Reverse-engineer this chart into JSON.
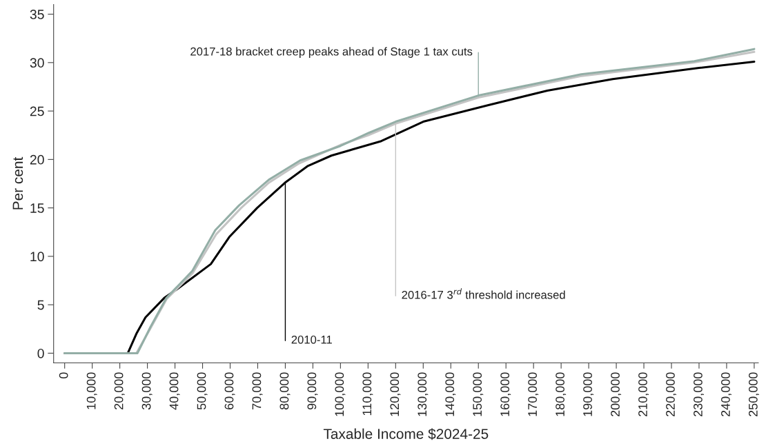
{
  "chart_data": {
    "type": "line",
    "xlabel": "Taxable Income $2024-25",
    "ylabel": "Per cent",
    "x": [
      0,
      22900,
      26000,
      29300,
      36100,
      41200,
      53000,
      59700,
      69800,
      79900,
      88000,
      96700,
      114800,
      130000,
      153400,
      175000,
      198700,
      230000,
      250000
    ],
    "series": [
      {
        "color": "#000000",
        "values": [
          0,
          0,
          2.0,
          3.7,
          5.7,
          6.7,
          9.2,
          12.0,
          15.0,
          17.6,
          19.3,
          20.4,
          21.9,
          23.9,
          25.6,
          27.1,
          28.3,
          29.45,
          30.1
        ]
      },
      {
        "color": "#c4c4c4",
        "x": [
          0,
          26000,
          31000,
          37000,
          46500,
          55000,
          64000,
          74000,
          85000,
          100000,
          110000,
          120000,
          150000,
          187000,
          228000,
          250000
        ],
        "values": [
          0,
          0,
          2.5,
          5.6,
          8.3,
          12.3,
          15.0,
          17.6,
          19.6,
          21.5,
          22.5,
          23.7,
          26.4,
          28.6,
          30.0,
          31.1
        ]
      },
      {
        "color": "#93aea6",
        "x": [
          0,
          26400,
          31100,
          36900,
          46300,
          54600,
          63200,
          74000,
          85400,
          100000,
          110300,
          120000,
          150000,
          187300,
          228300,
          250000
        ],
        "values": [
          0,
          0,
          2.7,
          5.7,
          8.5,
          12.7,
          15.25,
          17.9,
          19.9,
          21.4,
          22.75,
          23.9,
          26.6,
          28.8,
          30.15,
          31.4
        ]
      }
    ],
    "annotations": [
      {
        "text": "2010-11",
        "x": 80000,
        "y": 17.6
      },
      {
        "text": "2016-17 3$^{rd}$ threshold increased",
        "x": 120000,
        "y": 23.7
      },
      {
        "text": "2017-18 bracket creep peaks ahead of Stage 1 tax cuts",
        "x": 150000,
        "y": 26.6
      }
    ],
    "xlim": [
      -4000,
      251500
    ],
    "ylim": [
      -1,
      36
    ],
    "xticks": [
      0,
      {
        "value": 10000,
        "label": "10,000"
      },
      {
        "value": 20000,
        "label": "20,000"
      },
      {
        "value": 30000,
        "label": "30,000"
      },
      {
        "value": 40000,
        "label": "40,000"
      },
      {
        "value": 50000,
        "label": "50,000"
      },
      {
        "value": 60000,
        "label": "60,000"
      },
      {
        "value": 70000,
        "label": "70,000"
      },
      {
        "value": 80000,
        "label": "80,000"
      },
      {
        "value": 90000,
        "label": "90,000"
      },
      {
        "value": 100000,
        "label": "100,000"
      },
      {
        "value": 110000,
        "label": "110,000"
      },
      {
        "value": 120000,
        "label": "120,000"
      },
      {
        "value": 130000,
        "label": "130,000"
      },
      {
        "value": 140000,
        "label": "140,000"
      },
      {
        "value": 150000,
        "label": "150,000"
      },
      {
        "value": 160000,
        "label": "160,000"
      },
      {
        "value": 170000,
        "label": "170,000"
      },
      {
        "value": 180000,
        "label": "180,000"
      },
      {
        "value": 190000,
        "label": "190,000"
      },
      {
        "value": 200000,
        "label": "200,000"
      },
      {
        "value": 210000,
        "label": "210,000"
      },
      {
        "value": 220000,
        "label": "220,000"
      },
      {
        "value": 230000,
        "label": "230,000"
      },
      {
        "value": 240000,
        "label": "240,000"
      },
      {
        "value": 250000,
        "label": "250,000"
      }
    ],
    "yticks": [
      0,
      5,
      10,
      15,
      20,
      25,
      30,
      35
    ],
    "grid": false,
    "legend": false
  }
}
